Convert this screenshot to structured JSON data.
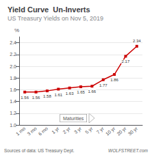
{
  "chart_data": {
    "type": "line",
    "title": "Yield Curve  Un-Inverts",
    "subtitle": "US Treasury Yields on Nov 5, 2019",
    "ylabel": "%",
    "annotations": [
      "Maturities",
      "Sources of data: US Treasury Dept.",
      "WOLFSTREET.com"
    ],
    "categories": [
      "1 mo",
      "3 mo",
      "6 mo",
      "1 yr",
      "2 yr",
      "3 yr",
      "5 yr",
      "7 yr",
      "10 yr",
      "20 yr",
      "30 yr"
    ],
    "values": [
      1.56,
      1.56,
      1.58,
      1.61,
      1.63,
      1.65,
      1.66,
      1.77,
      1.86,
      2.17,
      2.34
    ],
    "color": "#cc0000",
    "marker": "square",
    "data_labels": true,
    "grid": true,
    "ylim": [
      1.0,
      2.5
    ],
    "yticks": [
      {
        "value": 1,
        "label": "1.0"
      },
      1.2,
      1.4,
      1.6,
      1.8,
      {
        "value": 2,
        "label": "2.0"
      },
      2.2,
      2.4
    ]
  }
}
